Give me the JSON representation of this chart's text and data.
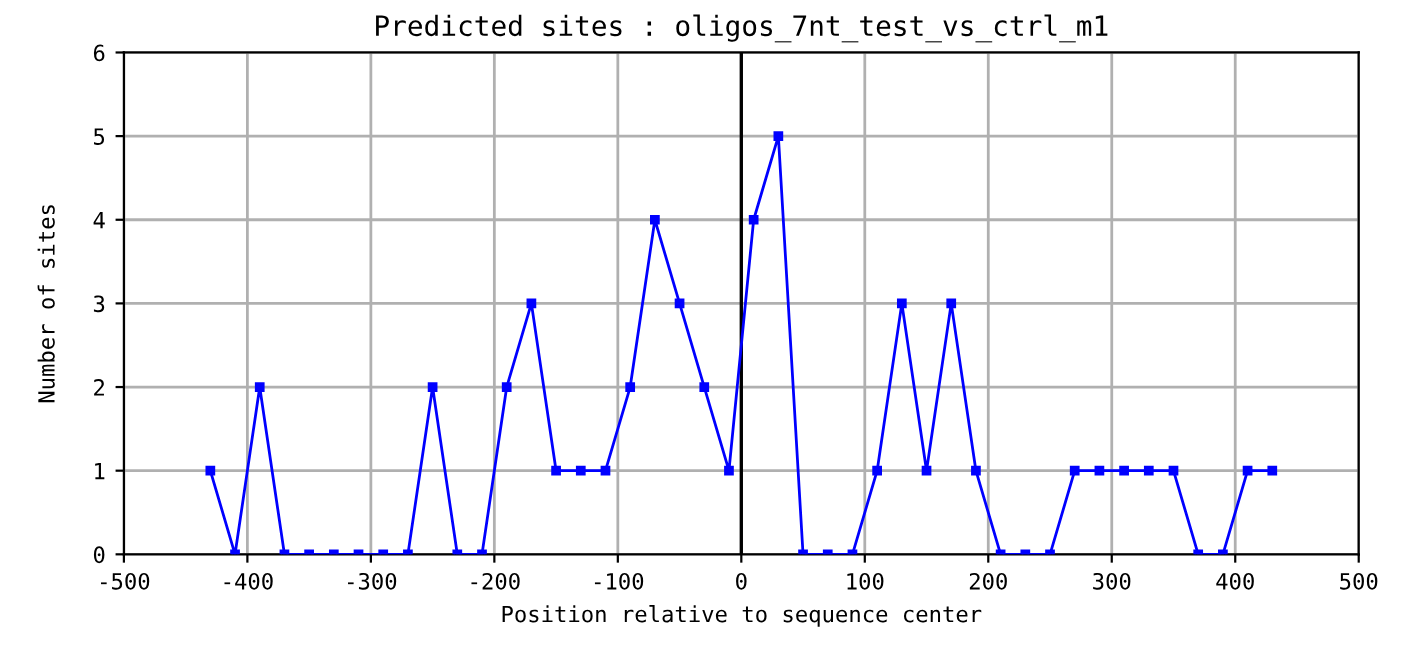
{
  "chart_data": {
    "type": "line",
    "title": "Predicted sites : oligos_7nt_test_vs_ctrl_m1",
    "xlabel": "Position relative to sequence center",
    "ylabel": "Number of sites",
    "x": [
      -430,
      -410,
      -390,
      -370,
      -350,
      -330,
      -310,
      -290,
      -270,
      -250,
      -230,
      -210,
      -190,
      -170,
      -150,
      -130,
      -110,
      -90,
      -70,
      -50,
      -30,
      -10,
      10,
      30,
      50,
      70,
      90,
      110,
      130,
      150,
      170,
      190,
      210,
      230,
      250,
      270,
      290,
      310,
      330,
      350,
      370,
      390,
      410,
      430
    ],
    "series": [
      {
        "color": "#0000ff",
        "values": [
          1,
          0,
          2,
          0,
          0,
          0,
          0,
          0,
          0,
          2,
          0,
          0,
          2,
          3,
          1,
          1,
          1,
          2,
          4,
          3,
          2,
          1,
          4,
          5,
          0,
          0,
          0,
          1,
          3,
          1,
          3,
          1,
          0,
          0,
          0,
          1,
          1,
          1,
          1,
          1,
          0,
          0,
          1,
          1
        ]
      }
    ],
    "xlim": [
      -500,
      500
    ],
    "xticks": [
      -500,
      -400,
      -300,
      -200,
      -100,
      0,
      100,
      200,
      300,
      400,
      500
    ],
    "ylim": [
      0,
      6
    ],
    "yticks": [
      0,
      1,
      2,
      3,
      4,
      5,
      6
    ],
    "grid": true,
    "marker": "square",
    "line_style": "solid",
    "ref_lines": [
      {
        "axis": "x",
        "value": 0,
        "color": "#000000"
      }
    ]
  }
}
